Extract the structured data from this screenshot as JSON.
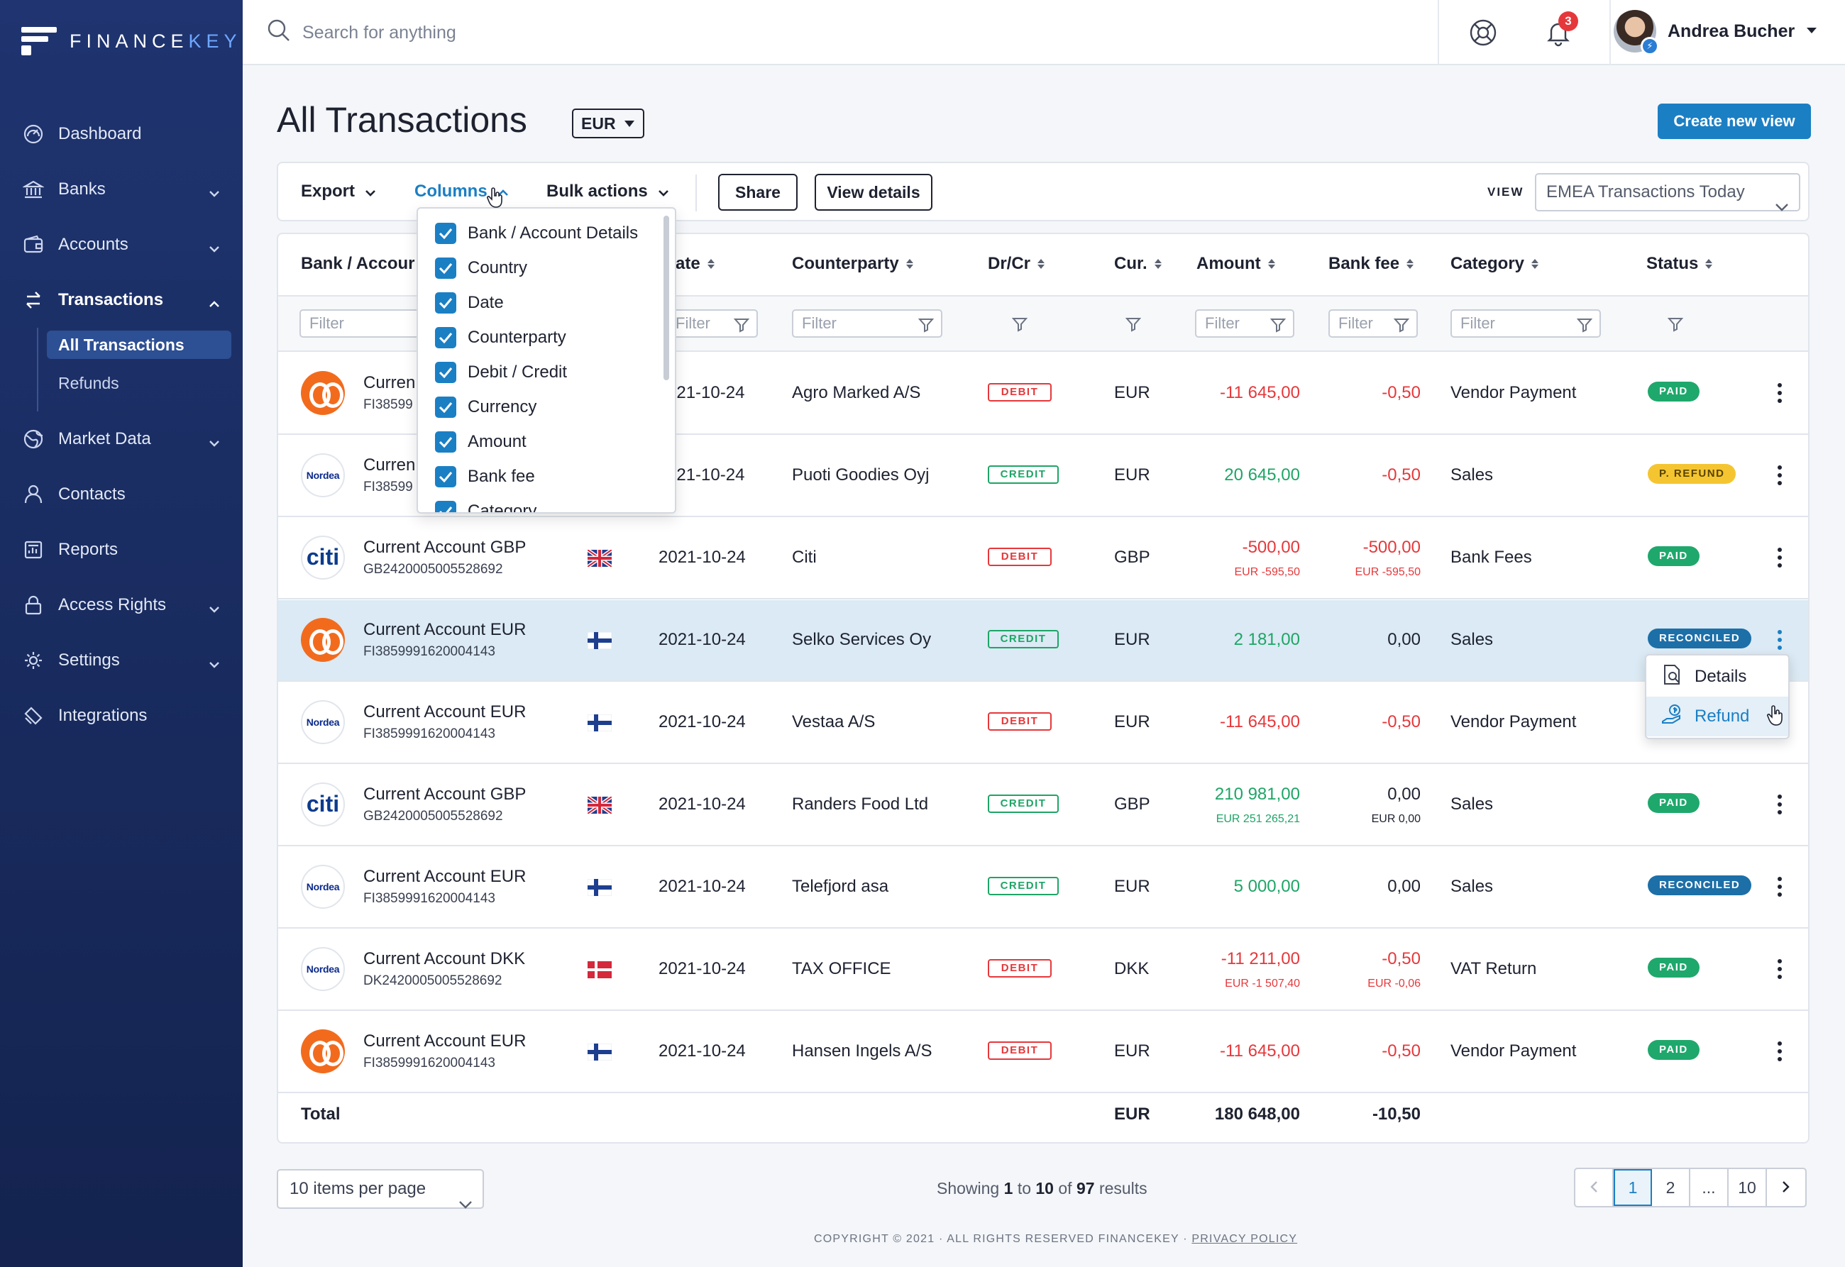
{
  "brand": {
    "name_a": "FINANCE",
    "name_b": "KEY"
  },
  "sidebar": {
    "items": [
      {
        "label": "Dashboard",
        "icon": "dashboard-icon"
      },
      {
        "label": "Banks",
        "icon": "bank-icon"
      },
      {
        "label": "Accounts",
        "icon": "wallet-icon"
      },
      {
        "label": "Transactions",
        "icon": "transfer-icon"
      },
      {
        "label": "Market Data",
        "icon": "globe-icon"
      },
      {
        "label": "Contacts",
        "icon": "contacts-icon"
      },
      {
        "label": "Reports",
        "icon": "reports-icon"
      },
      {
        "label": "Access Rights",
        "icon": "lock-icon"
      },
      {
        "label": "Settings",
        "icon": "gear-icon"
      },
      {
        "label": "Integrations",
        "icon": "integrations-icon"
      }
    ],
    "sub_items": [
      "All Transactions",
      "Refunds"
    ]
  },
  "topbar": {
    "search_placeholder": "Search for anything",
    "notification_count": "3",
    "user_name": "Andrea Bucher"
  },
  "page": {
    "title": "All Transactions",
    "currency": "EUR",
    "create_view": "Create new view"
  },
  "toolbar": {
    "export": "Export",
    "columns": "Columns",
    "bulk_actions": "Bulk actions",
    "share": "Share",
    "view_details": "View details",
    "view_label": "VIEW",
    "view_value": "EMEA Transactions Today"
  },
  "columns_menu": [
    "Bank / Account Details",
    "Country",
    "Date",
    "Counterparty",
    "Debit / Credit",
    "Currency",
    "Amount",
    "Bank fee",
    "Category"
  ],
  "table": {
    "headers": {
      "bank": "Bank / Accour",
      "date": "ate",
      "counterparty": "Counterparty",
      "drcr": "Dr/Cr",
      "cur": "Cur.",
      "amount": "Amount",
      "bank_fee": "Bank fee",
      "category": "Category",
      "status": "Status"
    },
    "filter_placeholder": "Filter",
    "rows": [
      {
        "bank": "op",
        "account": "Curren",
        "number": "FI38599",
        "country": "",
        "date": "021-10-24",
        "counterparty": "Agro Marked A/S",
        "drcr": "DEBIT",
        "cur": "EUR",
        "amount": "-11 645,00",
        "amount_sub": "",
        "fee": "-0,50",
        "fee_sub": "",
        "category": "Vendor Payment",
        "status": "PAID"
      },
      {
        "bank": "nordea",
        "account": "Curren",
        "number": "FI38599",
        "country": "",
        "date": "021-10-24",
        "counterparty": "Puoti Goodies Oyj",
        "drcr": "CREDIT",
        "cur": "EUR",
        "amount": "20 645,00",
        "amount_sub": "",
        "fee": "-0,50",
        "fee_sub": "",
        "category": "Sales",
        "status": "P. REFUND"
      },
      {
        "bank": "citi",
        "account": "Current Account GBP",
        "number": "GB2420005005528692",
        "country": "uk",
        "date": "2021-10-24",
        "counterparty": "Citi",
        "drcr": "DEBIT",
        "cur": "GBP",
        "amount": "-500,00",
        "amount_sub": "EUR -595,50",
        "fee": "-500,00",
        "fee_sub": "EUR -595,50",
        "category": "Bank Fees",
        "status": "PAID"
      },
      {
        "bank": "op",
        "account": "Current Account EUR",
        "number": "FI3859991620004143",
        "country": "fi",
        "date": "2021-10-24",
        "counterparty": "Selko Services Oy",
        "drcr": "CREDIT",
        "cur": "EUR",
        "amount": "2 181,00",
        "amount_sub": "",
        "fee": "0,00",
        "fee_sub": "",
        "category": "Sales",
        "status": "RECONCILED"
      },
      {
        "bank": "nordea",
        "account": "Current Account EUR",
        "number": "FI3859991620004143",
        "country": "fi",
        "date": "2021-10-24",
        "counterparty": "Vestaa A/S",
        "drcr": "DEBIT",
        "cur": "EUR",
        "amount": "-11 645,00",
        "amount_sub": "",
        "fee": "-0,50",
        "fee_sub": "",
        "category": "Vendor Payment",
        "status": ""
      },
      {
        "bank": "citi",
        "account": "Current Account GBP",
        "number": "GB2420005005528692",
        "country": "uk",
        "date": "2021-10-24",
        "counterparty": "Randers Food Ltd",
        "drcr": "CREDIT",
        "cur": "GBP",
        "amount": "210 981,00",
        "amount_sub": "EUR 251 265,21",
        "fee": "0,00",
        "fee_sub": "EUR 0,00",
        "category": "Sales",
        "status": "PAID"
      },
      {
        "bank": "nordea",
        "account": "Current Account EUR",
        "number": "FI3859991620004143",
        "country": "fi",
        "date": "2021-10-24",
        "counterparty": "Telefjord asa",
        "drcr": "CREDIT",
        "cur": "EUR",
        "amount": "5 000,00",
        "amount_sub": "",
        "fee": "0,00",
        "fee_sub": "",
        "category": "Sales",
        "status": "RECONCILED"
      },
      {
        "bank": "nordea",
        "account": "Current Account DKK",
        "number": "DK2420005005528692",
        "country": "dk",
        "date": "2021-10-24",
        "counterparty": "TAX OFFICE",
        "drcr": "DEBIT",
        "cur": "DKK",
        "amount": "-11 211,00",
        "amount_sub": "EUR -1 507,40",
        "fee": "-0,50",
        "fee_sub": "EUR -0,06",
        "category": "VAT Return",
        "status": "PAID"
      },
      {
        "bank": "op",
        "account": "Current Account EUR",
        "number": "FI3859991620004143",
        "country": "fi",
        "date": "2021-10-24",
        "counterparty": "Hansen Ingels A/S",
        "drcr": "DEBIT",
        "cur": "EUR",
        "amount": "-11 645,00",
        "amount_sub": "",
        "fee": "-0,50",
        "fee_sub": "",
        "category": "Vendor Payment",
        "status": "PAID"
      }
    ],
    "total": {
      "label": "Total",
      "cur": "EUR",
      "amount": "180 648,00",
      "fee": "-10,50"
    }
  },
  "row_menu": {
    "details": "Details",
    "refund": "Refund"
  },
  "footer": {
    "per_page": "10 items per page",
    "showing_prefix": "Showing",
    "from": "1",
    "to_word": "to",
    "to": "10",
    "of_word": "of",
    "total": "97",
    "results_word": "results",
    "pages": [
      "1",
      "2",
      "...",
      "10"
    ],
    "copyright": "COPYRIGHT © 2021 · ALL RIGHTS RESERVED FINANCEKEY ·",
    "privacy": "PRIVACY POLICY"
  },
  "colors": {
    "accent": "#1b7fc4",
    "sidebar": "#1f3470",
    "debit": "#e5383b",
    "credit": "#1ea566"
  }
}
